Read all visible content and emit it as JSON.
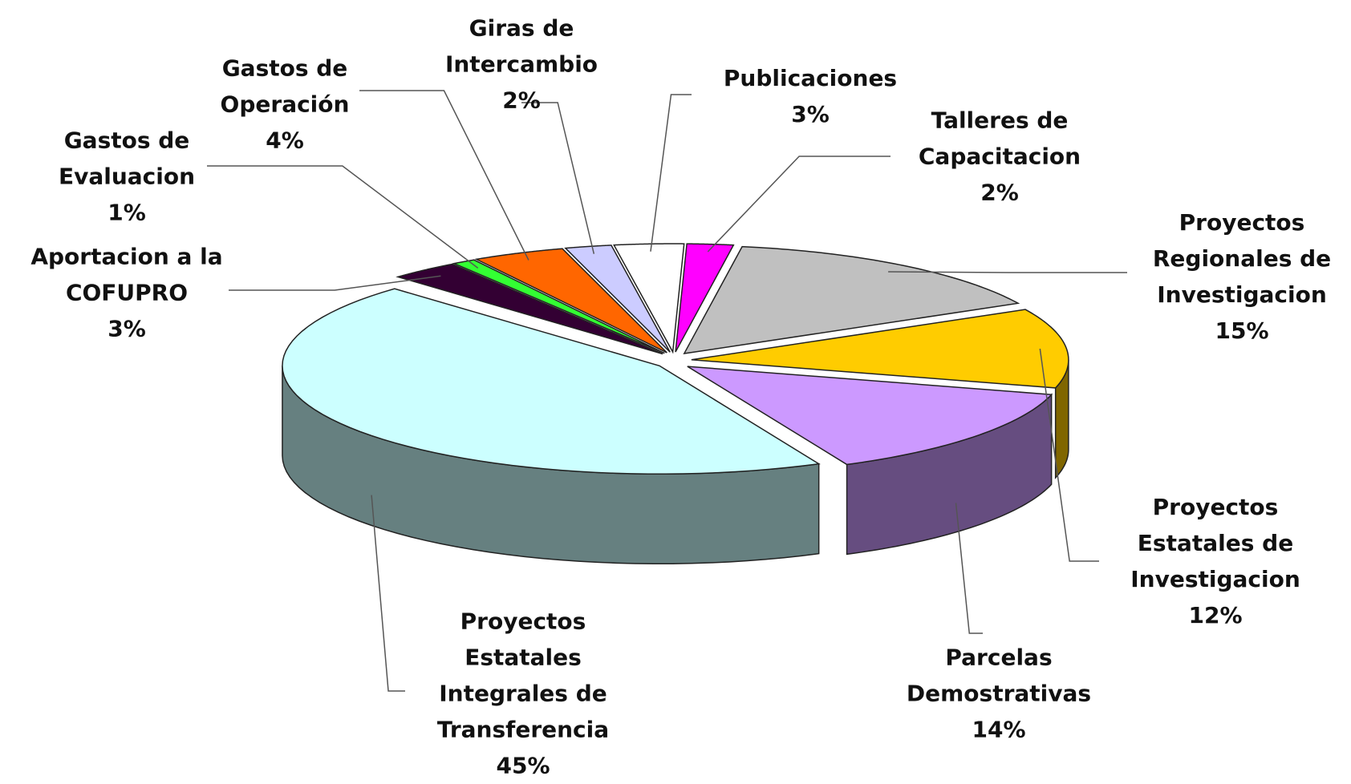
{
  "chart_data": {
    "type": "pie3d",
    "categories": [
      "Talleres de Capacitacion",
      "Proyectos Regionales de Investigacion",
      "Proyectos Estatales de Investigacion",
      "Parcelas Demostrativas",
      "Proyectos Estatales Integrales de Transferencia",
      "Aportacion a la COFUPRO",
      "Gastos de Evaluacion",
      "Gastos de Operación",
      "Giras de Intercambio",
      "Publicaciones"
    ],
    "values": [
      2,
      15,
      12,
      14,
      45,
      3,
      1,
      4,
      2,
      3
    ],
    "value_labels": [
      "2%",
      "15%",
      "12%",
      "14%",
      "45%",
      "3%",
      "1%",
      "4%",
      "2%",
      "3%"
    ],
    "colors": [
      "#ff00ff",
      "#c0c0c0",
      "#ffcc00",
      "#cc99ff",
      "#ccffff",
      "#330033",
      "#33ff33",
      "#ff6600",
      "#ccccff",
      "#ffffff"
    ]
  }
}
